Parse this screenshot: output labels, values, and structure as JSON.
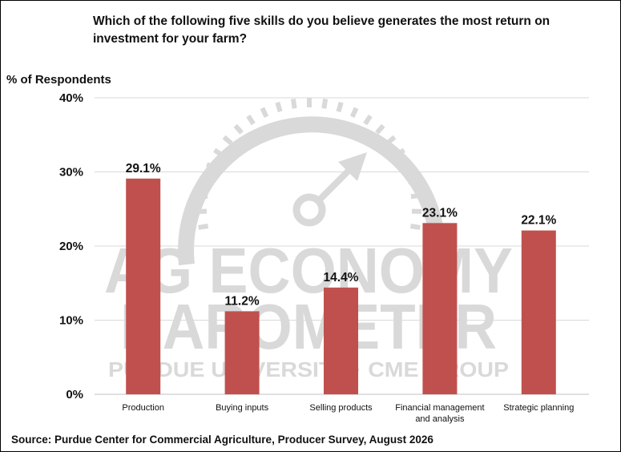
{
  "chart_data": {
    "type": "bar",
    "title": "Which of the following five skills do you believe generates the most return on investment for your farm?",
    "ylabel": "% of Respondents",
    "xlabel": "",
    "categories": [
      "Production",
      "Buying inputs",
      "Selling products",
      "Financial management and analysis",
      "Strategic planning"
    ],
    "category_lines": [
      [
        "Production"
      ],
      [
        "Buying inputs"
      ],
      [
        "Selling products"
      ],
      [
        "Financial management",
        "and analysis"
      ],
      [
        "Strategic planning"
      ]
    ],
    "values": [
      29.1,
      11.2,
      14.4,
      23.1,
      22.1
    ],
    "data_labels": [
      "29.1%",
      "11.2%",
      "14.4%",
      "23.1%",
      "22.1%"
    ],
    "ylim": [
      0,
      40
    ],
    "yticks": [
      0,
      10,
      20,
      30,
      40
    ],
    "ytick_labels": [
      "0%",
      "10%",
      "20%",
      "30%",
      "40%"
    ],
    "grid": true,
    "legend": "none",
    "bar_color": "#c0504d",
    "grid_color": "#d9d9d9"
  },
  "watermark": {
    "line1": "AG ECONOMY",
    "line2": "BAROMETER",
    "line3": "PURDUE UNIVERSITY · CME GROUP",
    "color": "#d9d9d9"
  },
  "source": "Source: Purdue Center for Commercial Agriculture, Producer Survey, August 2026"
}
